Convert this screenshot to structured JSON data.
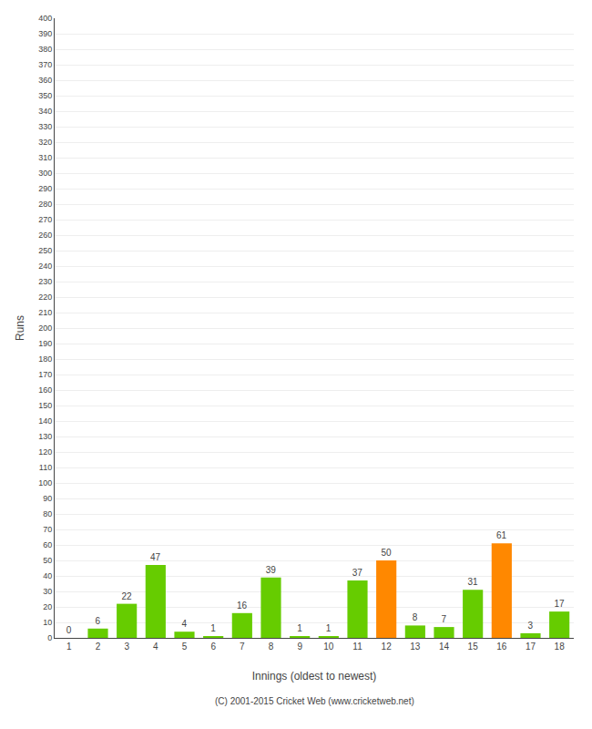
{
  "chart_data": {
    "type": "bar",
    "xlabel": "Innings (oldest to newest)",
    "ylabel": "Runs",
    "categories": [
      1,
      2,
      3,
      4,
      5,
      6,
      7,
      8,
      9,
      10,
      11,
      12,
      13,
      14,
      15,
      16,
      17,
      18
    ],
    "values": [
      0,
      6,
      22,
      47,
      4,
      1,
      16,
      39,
      1,
      1,
      37,
      50,
      8,
      7,
      31,
      61,
      3,
      17
    ],
    "colors": [
      "#66cc00",
      "#66cc00",
      "#66cc00",
      "#66cc00",
      "#66cc00",
      "#66cc00",
      "#66cc00",
      "#66cc00",
      "#66cc00",
      "#66cc00",
      "#66cc00",
      "#ff8800",
      "#66cc00",
      "#66cc00",
      "#66cc00",
      "#ff8800",
      "#66cc00",
      "#66cc00"
    ],
    "ylim": [
      0,
      400
    ],
    "yticks": [
      0,
      10,
      20,
      30,
      40,
      50,
      60,
      70,
      80,
      90,
      100,
      110,
      120,
      130,
      140,
      150,
      160,
      170,
      180,
      190,
      200,
      210,
      220,
      230,
      240,
      250,
      260,
      270,
      280,
      290,
      300,
      310,
      320,
      330,
      340,
      350,
      360,
      370,
      380,
      390,
      400
    ],
    "grid": true,
    "data_labels": true,
    "annotations": [
      "(C) 2001-2015 Cricket Web (www.cricketweb.net)"
    ]
  }
}
